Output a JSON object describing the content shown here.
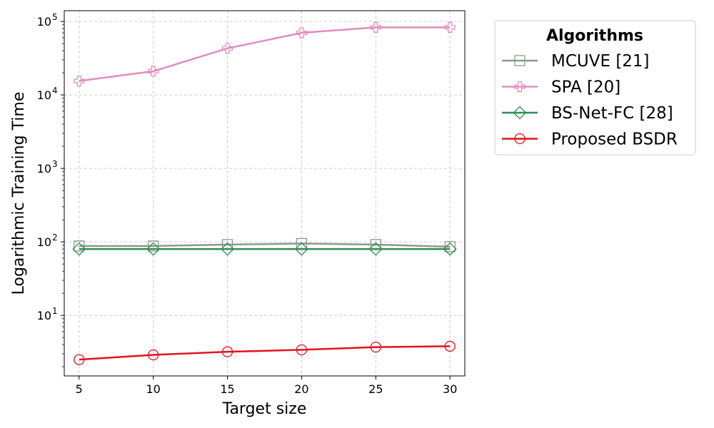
{
  "chart_data": {
    "type": "line",
    "xlabel": "Target size",
    "ylabel": "Logarithmic Training Time",
    "yscale": "log",
    "x": [
      5,
      10,
      15,
      20,
      25,
      30
    ],
    "x_ticks": [
      "5",
      "10",
      "15",
      "20",
      "25",
      "30"
    ],
    "y_ticks": [
      {
        "value": 10,
        "base": "10",
        "exp": "1"
      },
      {
        "value": 100,
        "base": "10",
        "exp": "2"
      },
      {
        "value": 1000,
        "base": "10",
        "exp": "3"
      },
      {
        "value": 10000,
        "base": "10",
        "exp": "4"
      },
      {
        "value": 100000,
        "base": "10",
        "exp": "5"
      }
    ],
    "xlim": [
      4,
      31
    ],
    "ylim": [
      1.5,
      140000
    ],
    "grid": true,
    "legend": {
      "title": "Algorithms",
      "placement": "outside-right"
    },
    "series": [
      {
        "name": "MCUVE [21]",
        "color": "#8c9a86",
        "marker": "square",
        "values": [
          88,
          88,
          92,
          95,
          92,
          86
        ]
      },
      {
        "name": "SPA [20]",
        "color": "#e08cbc",
        "marker": "plus",
        "values": [
          15500,
          21000,
          43000,
          70000,
          83000,
          83000
        ]
      },
      {
        "name": "BS-Net-FC [28]",
        "color": "#2e8b57",
        "marker": "diamond",
        "values": [
          80,
          80,
          80,
          80,
          80,
          80
        ]
      },
      {
        "name": "Proposed BSDR",
        "color": "#e3121f",
        "marker": "circle",
        "values": [
          2.5,
          2.9,
          3.2,
          3.4,
          3.7,
          3.8
        ]
      }
    ]
  }
}
